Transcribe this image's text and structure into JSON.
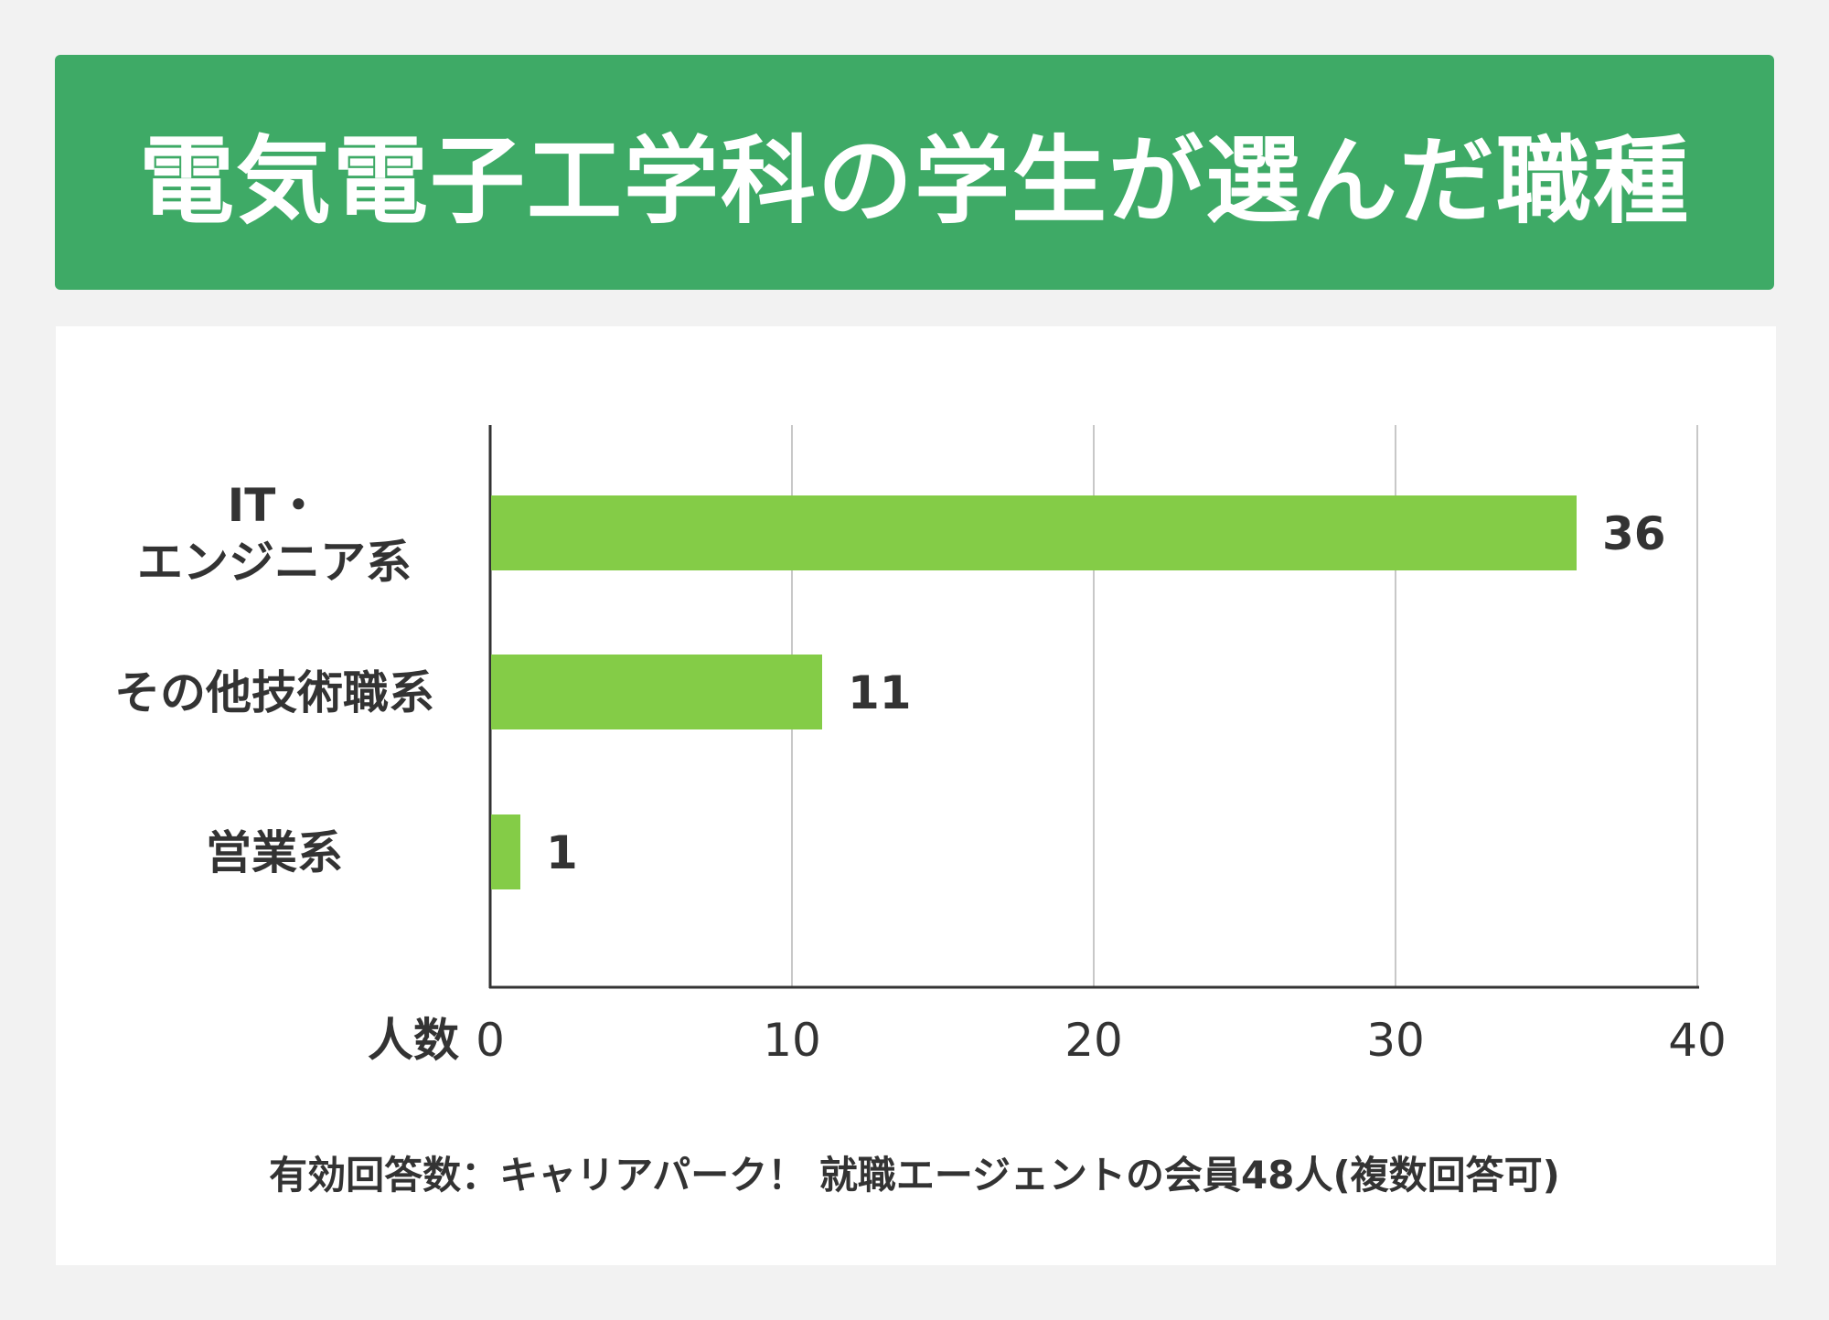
{
  "header": {
    "title": "電気電子工学科の学生が選んだ職種"
  },
  "chart_data": {
    "type": "bar",
    "orientation": "horizontal",
    "categories": [
      "IT・\nエンジニア系",
      "その他技術職系",
      "営業系"
    ],
    "values": [
      36,
      11,
      1
    ],
    "data_labels": [
      "36",
      "11",
      "1"
    ],
    "xlabel": "人数",
    "xlim": [
      0,
      40
    ],
    "x_ticks": [
      0,
      10,
      20,
      30,
      40
    ],
    "grid": true,
    "bar_color": "#84cc47",
    "grid_color": "#c8c8c8",
    "axis_color": "#333333"
  },
  "footnote": "有効回答数：キャリアパーク！ 就職エージェントの会員48人(複数回答可)"
}
